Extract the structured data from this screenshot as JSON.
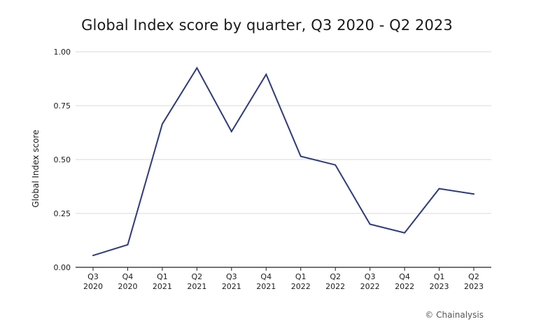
{
  "chart_data": {
    "type": "line",
    "title": "Global Index score by quarter, Q3 2020 - Q2 2023",
    "ylabel": "Global Index score",
    "xlabel": "",
    "categories": [
      [
        "Q3",
        "2020"
      ],
      [
        "Q4",
        "2020"
      ],
      [
        "Q1",
        "2021"
      ],
      [
        "Q2",
        "2021"
      ],
      [
        "Q3",
        "2021"
      ],
      [
        "Q4",
        "2021"
      ],
      [
        "Q1",
        "2022"
      ],
      [
        "Q2",
        "2022"
      ],
      [
        "Q3",
        "2022"
      ],
      [
        "Q4",
        "2022"
      ],
      [
        "Q1",
        "2023"
      ],
      [
        "Q2",
        "2023"
      ]
    ],
    "series": [
      {
        "values": [
          0.055,
          0.105,
          0.665,
          0.925,
          0.63,
          0.895,
          0.515,
          0.475,
          0.2,
          0.16,
          0.365,
          0.34
        ],
        "color": "#2f3a7a"
      }
    ],
    "yticks": [
      "0.00",
      "0.25",
      "0.50",
      "0.75",
      "1.00"
    ],
    "ylim": [
      0,
      1
    ],
    "grid": true,
    "legend": "none"
  },
  "colors": {
    "grid": "#d9d9d9",
    "axis": "#222222"
  },
  "source": "© Chainalysis"
}
